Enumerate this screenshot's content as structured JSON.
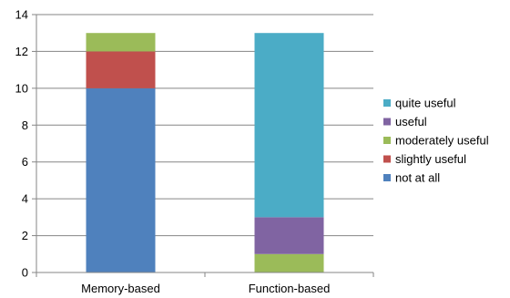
{
  "chart_data": {
    "type": "bar",
    "stacked": true,
    "categories": [
      "Memory-based",
      "Function-based"
    ],
    "series": [
      {
        "name": "not at all",
        "color": "#4f81bd",
        "values": [
          10,
          0
        ]
      },
      {
        "name": "slightly useful",
        "color": "#c0504d",
        "values": [
          2,
          0
        ]
      },
      {
        "name": "moderately useful",
        "color": "#9bbb59",
        "values": [
          1,
          1
        ]
      },
      {
        "name": "useful",
        "color": "#8064a2",
        "values": [
          0,
          2
        ]
      },
      {
        "name": "quite useful",
        "color": "#4bacc6",
        "values": [
          0,
          10
        ]
      }
    ],
    "yticks": [
      "0",
      "2",
      "4",
      "6",
      "8",
      "10",
      "12",
      "14"
    ],
    "ylim": [
      0,
      14
    ],
    "grid": true,
    "legend_position": "right",
    "title": "",
    "xlabel": "",
    "ylabel": ""
  }
}
